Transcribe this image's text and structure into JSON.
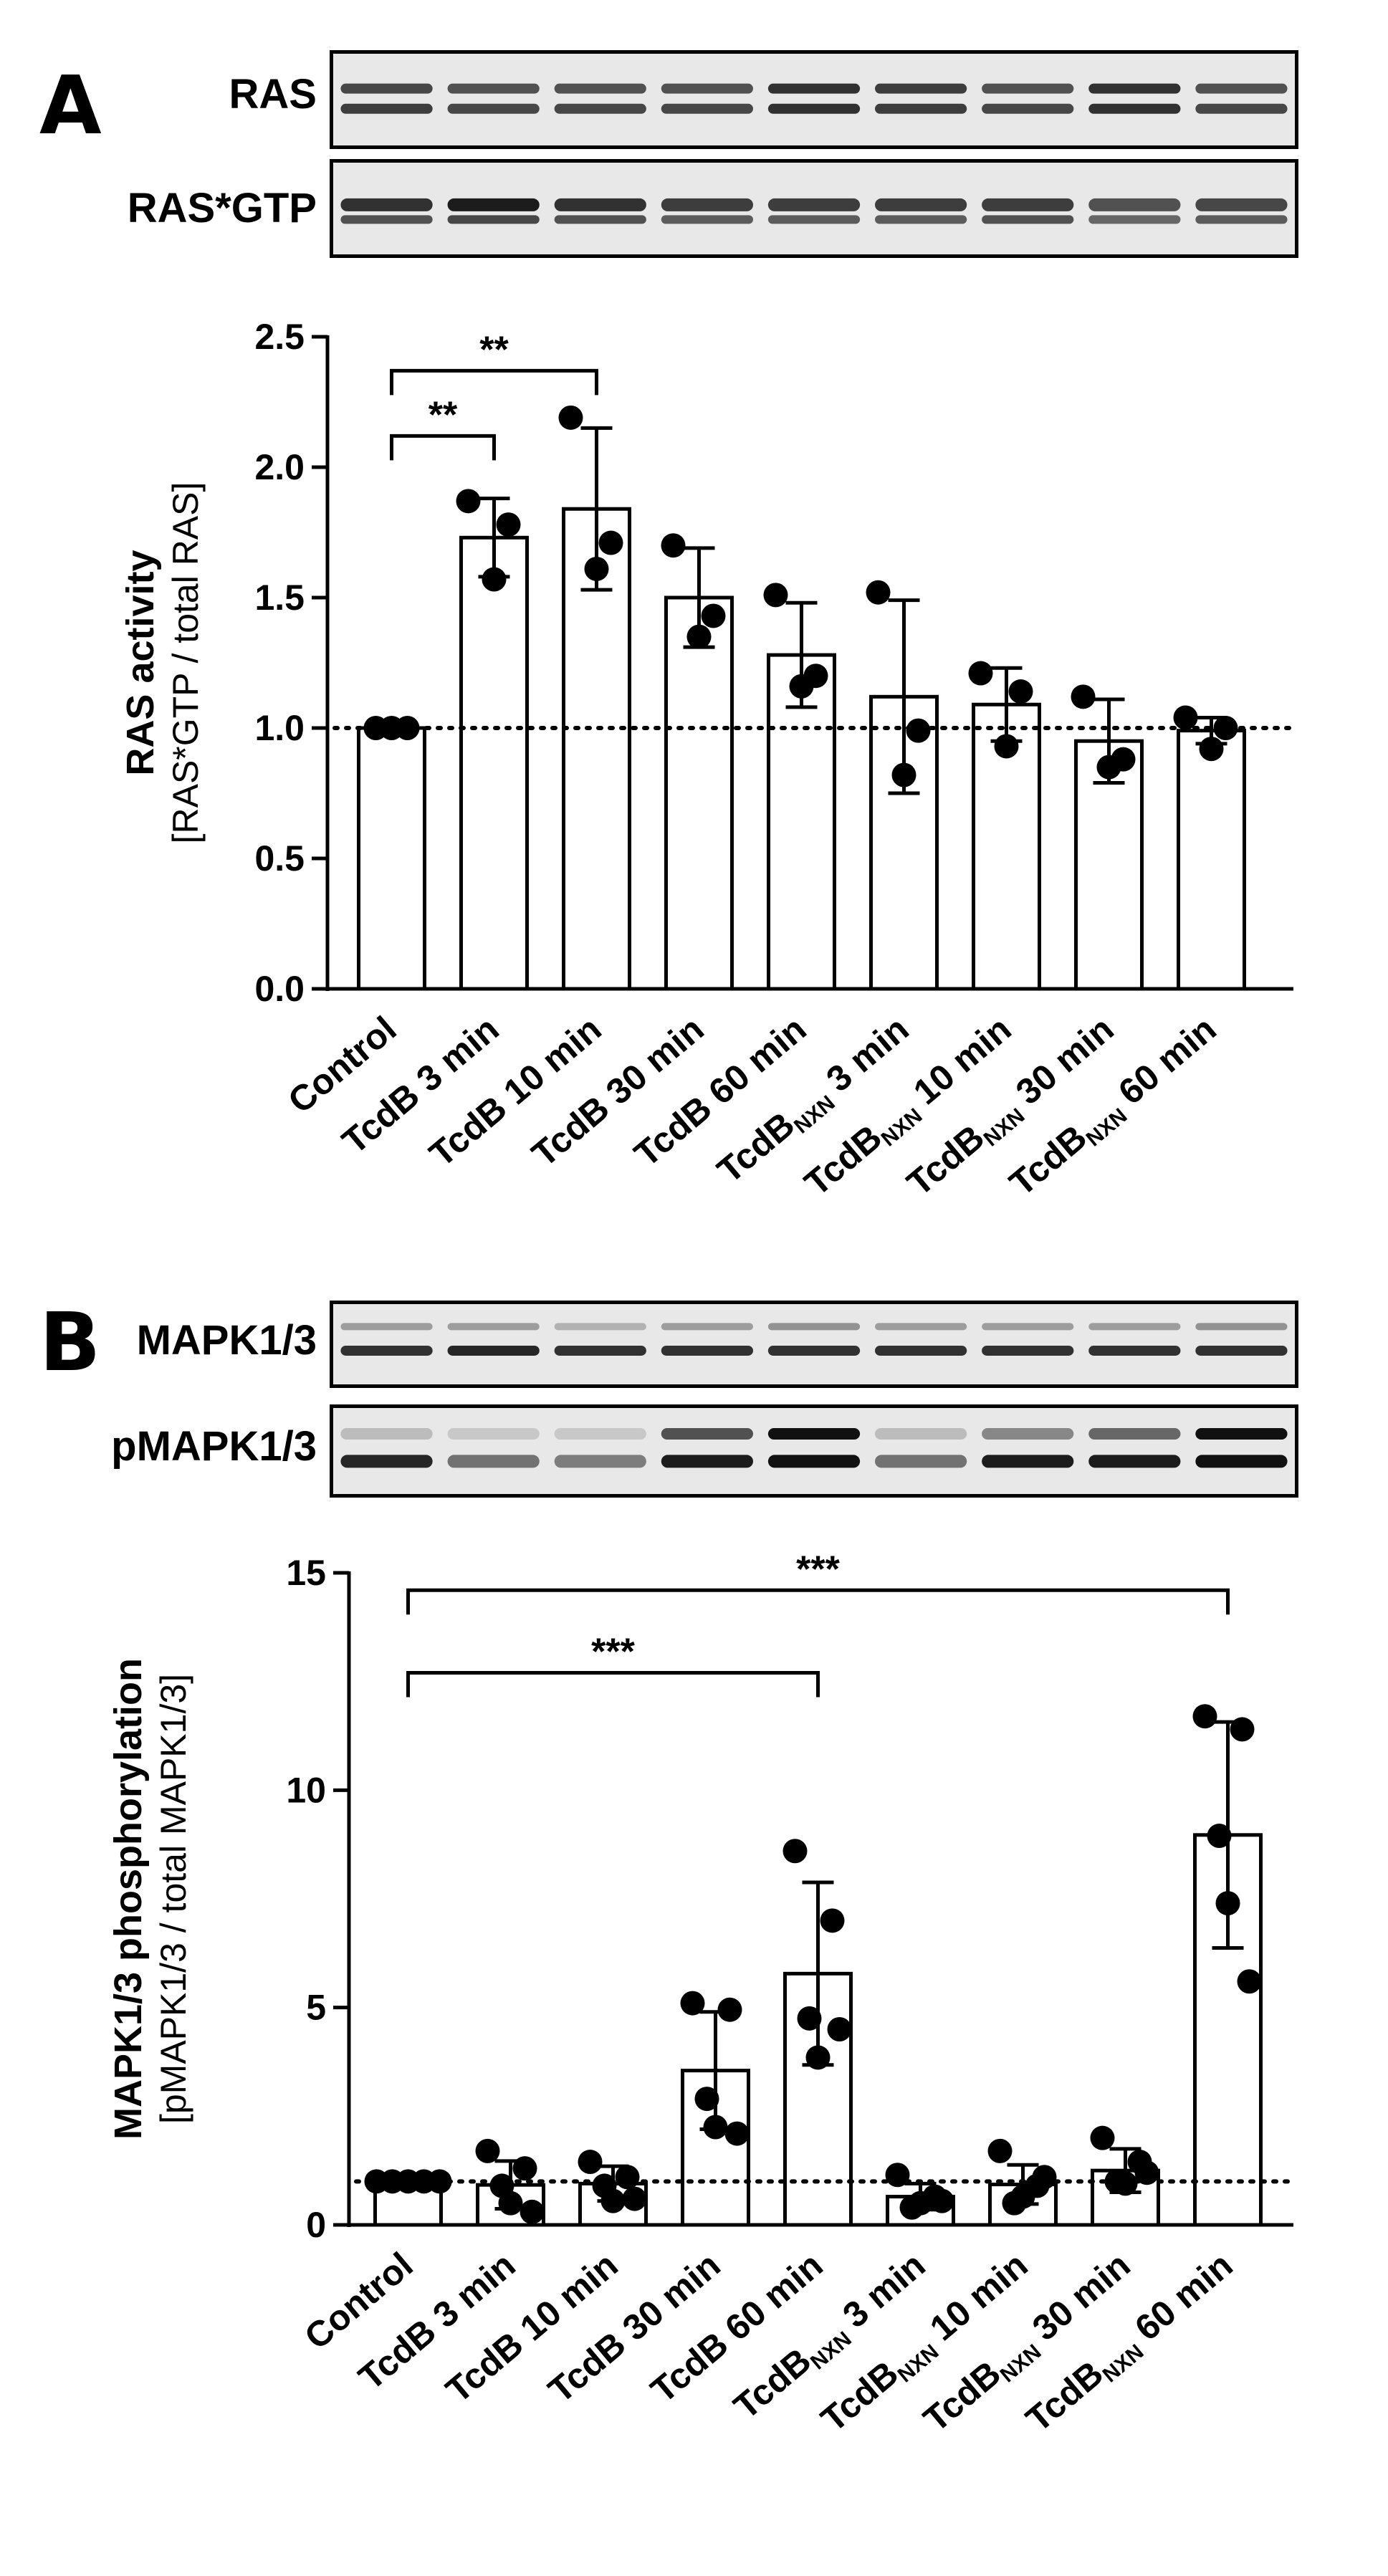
{
  "panels": [
    {
      "letter": "A",
      "blots": [
        {
          "label": "RAS",
          "pattern": "ras"
        },
        {
          "label": "RAS*GTP",
          "pattern": "rasgtp"
        }
      ]
    },
    {
      "letter": "B",
      "blots": [
        {
          "label": "MAPK1/3",
          "pattern": "mapk"
        },
        {
          "label": "pMAPK1/3",
          "pattern": "pmapk"
        }
      ]
    }
  ],
  "chart_data": [
    {
      "type": "bar",
      "ylabel": "RAS activity",
      "ylabel2": "[RAS*GTP / total RAS]",
      "ylim": [
        0,
        2.5
      ],
      "yticks": [
        "0.0",
        "0.5",
        "1.0",
        "1.5",
        "2.0",
        "2.5"
      ],
      "reference_line": 1.0,
      "categories": [
        {
          "main": "Control",
          "sub": "",
          "suffix": ""
        },
        {
          "main": "TcdB 3 min",
          "sub": "",
          "suffix": ""
        },
        {
          "main": "TcdB 10 min",
          "sub": "",
          "suffix": ""
        },
        {
          "main": "TcdB 30 min",
          "sub": "",
          "suffix": ""
        },
        {
          "main": "TcdB 60 min",
          "sub": "",
          "suffix": ""
        },
        {
          "main": "TcdB",
          "sub": "NXN",
          "suffix": " 3 min"
        },
        {
          "main": "TcdB",
          "sub": "NXN",
          "suffix": " 10 min"
        },
        {
          "main": "TcdB",
          "sub": "NXN",
          "suffix": " 30 min"
        },
        {
          "main": "TcdB",
          "sub": "NXN",
          "suffix": " 60 min"
        }
      ],
      "values": [
        1.0,
        1.73,
        1.84,
        1.5,
        1.28,
        1.12,
        1.09,
        0.95,
        0.99
      ],
      "error": [
        0.0,
        0.15,
        0.31,
        0.19,
        0.2,
        0.37,
        0.14,
        0.16,
        0.05
      ],
      "points": [
        [
          1.0,
          1.0,
          1.0
        ],
        [
          1.87,
          1.78,
          1.57
        ],
        [
          2.19,
          1.71,
          1.61
        ],
        [
          1.7,
          1.43,
          1.35
        ],
        [
          1.51,
          1.2,
          1.16
        ],
        [
          1.52,
          0.99,
          0.82
        ],
        [
          1.21,
          1.14,
          0.93
        ],
        [
          1.12,
          0.88,
          0.85
        ],
        [
          1.04,
          1.0,
          0.92
        ]
      ],
      "significance": [
        {
          "from": 0,
          "to": 1,
          "label": "**",
          "y": 2.12
        },
        {
          "from": 0,
          "to": 2,
          "label": "**",
          "y": 2.37
        }
      ]
    },
    {
      "type": "bar",
      "ylabel": "MAPK1/3 phosphorylation",
      "ylabel2": "[pMAPK1/3 / total MAPK1/3]",
      "ylim": [
        0,
        15
      ],
      "yticks": [
        "0",
        "5",
        "10",
        "15"
      ],
      "reference_line": 1.0,
      "categories": [
        {
          "main": "Control",
          "sub": "",
          "suffix": ""
        },
        {
          "main": "TcdB 3 min",
          "sub": "",
          "suffix": ""
        },
        {
          "main": "TcdB 10 min",
          "sub": "",
          "suffix": ""
        },
        {
          "main": "TcdB 30 min",
          "sub": "",
          "suffix": ""
        },
        {
          "main": "TcdB 60 min",
          "sub": "",
          "suffix": ""
        },
        {
          "main": "TcdB",
          "sub": "NXN",
          "suffix": " 3 min"
        },
        {
          "main": "TcdB",
          "sub": "NXN",
          "suffix": " 10 min"
        },
        {
          "main": "TcdB",
          "sub": "NXN",
          "suffix": " 30 min"
        },
        {
          "main": "TcdB",
          "sub": "NXN",
          "suffix": " 60 min"
        }
      ],
      "values": [
        1.0,
        0.92,
        0.95,
        3.55,
        5.78,
        0.65,
        0.93,
        1.25,
        8.97
      ],
      "error": [
        0.0,
        0.55,
        0.4,
        1.35,
        2.1,
        0.3,
        0.45,
        0.5,
        2.6
      ],
      "points": [
        [
          1.0,
          1.0,
          1.0,
          1.0,
          1.0
        ],
        [
          1.7,
          1.3,
          0.9,
          0.5,
          0.3
        ],
        [
          1.45,
          1.1,
          0.9,
          0.55,
          0.6
        ],
        [
          5.1,
          4.95,
          2.9,
          2.25,
          2.1
        ],
        [
          8.6,
          7.0,
          4.75,
          3.85,
          4.5
        ],
        [
          1.15,
          0.65,
          0.4,
          0.5,
          0.55
        ],
        [
          1.7,
          0.9,
          0.5,
          0.65,
          1.1
        ],
        [
          2.0,
          1.45,
          1.0,
          0.95,
          1.2
        ],
        [
          11.7,
          11.4,
          8.95,
          7.4,
          5.6
        ]
      ],
      "significance": [
        {
          "from": 0,
          "to": 4,
          "label": "***",
          "y": 12.7
        },
        {
          "from": 0,
          "to": 8,
          "label": "***",
          "y": 14.6
        }
      ]
    }
  ]
}
